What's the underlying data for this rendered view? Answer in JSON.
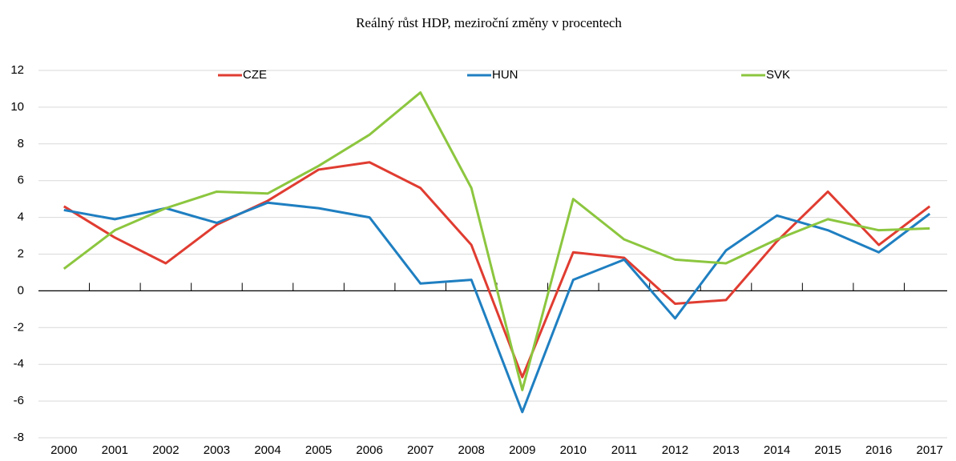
{
  "chart_data": {
    "type": "line",
    "title": "Reálný růst HDP, meziroční změny v procentech",
    "categories": [
      "2000",
      "2001",
      "2002",
      "2003",
      "2004",
      "2005",
      "2006",
      "2007",
      "2008",
      "2009",
      "2010",
      "2011",
      "2012",
      "2013",
      "2014",
      "2015",
      "2016",
      "2017"
    ],
    "series": [
      {
        "name": "CZE",
        "color": "#e03c31",
        "values": [
          4.6,
          2.9,
          1.5,
          3.6,
          4.9,
          6.6,
          7.0,
          5.6,
          2.5,
          -4.7,
          2.1,
          1.8,
          -0.7,
          -0.5,
          2.7,
          5.4,
          2.5,
          4.6
        ]
      },
      {
        "name": "HUN",
        "color": "#1f7fc1",
        "values": [
          4.4,
          3.9,
          4.5,
          3.7,
          4.8,
          4.5,
          4.0,
          0.4,
          0.6,
          -6.6,
          0.6,
          1.7,
          -1.5,
          2.2,
          4.1,
          3.3,
          2.1,
          4.2
        ]
      },
      {
        "name": "SVK",
        "color": "#8cc63f",
        "values": [
          1.2,
          3.3,
          4.5,
          5.4,
          5.3,
          6.8,
          8.5,
          10.8,
          5.6,
          -5.4,
          5.0,
          2.8,
          1.7,
          1.5,
          2.8,
          3.9,
          3.3,
          3.4
        ]
      }
    ],
    "ylim": [
      -8,
      12
    ],
    "yticks": [
      -8,
      -6,
      -4,
      -2,
      0,
      2,
      4,
      6,
      8,
      10,
      12
    ],
    "grid": true,
    "legend": "top"
  }
}
